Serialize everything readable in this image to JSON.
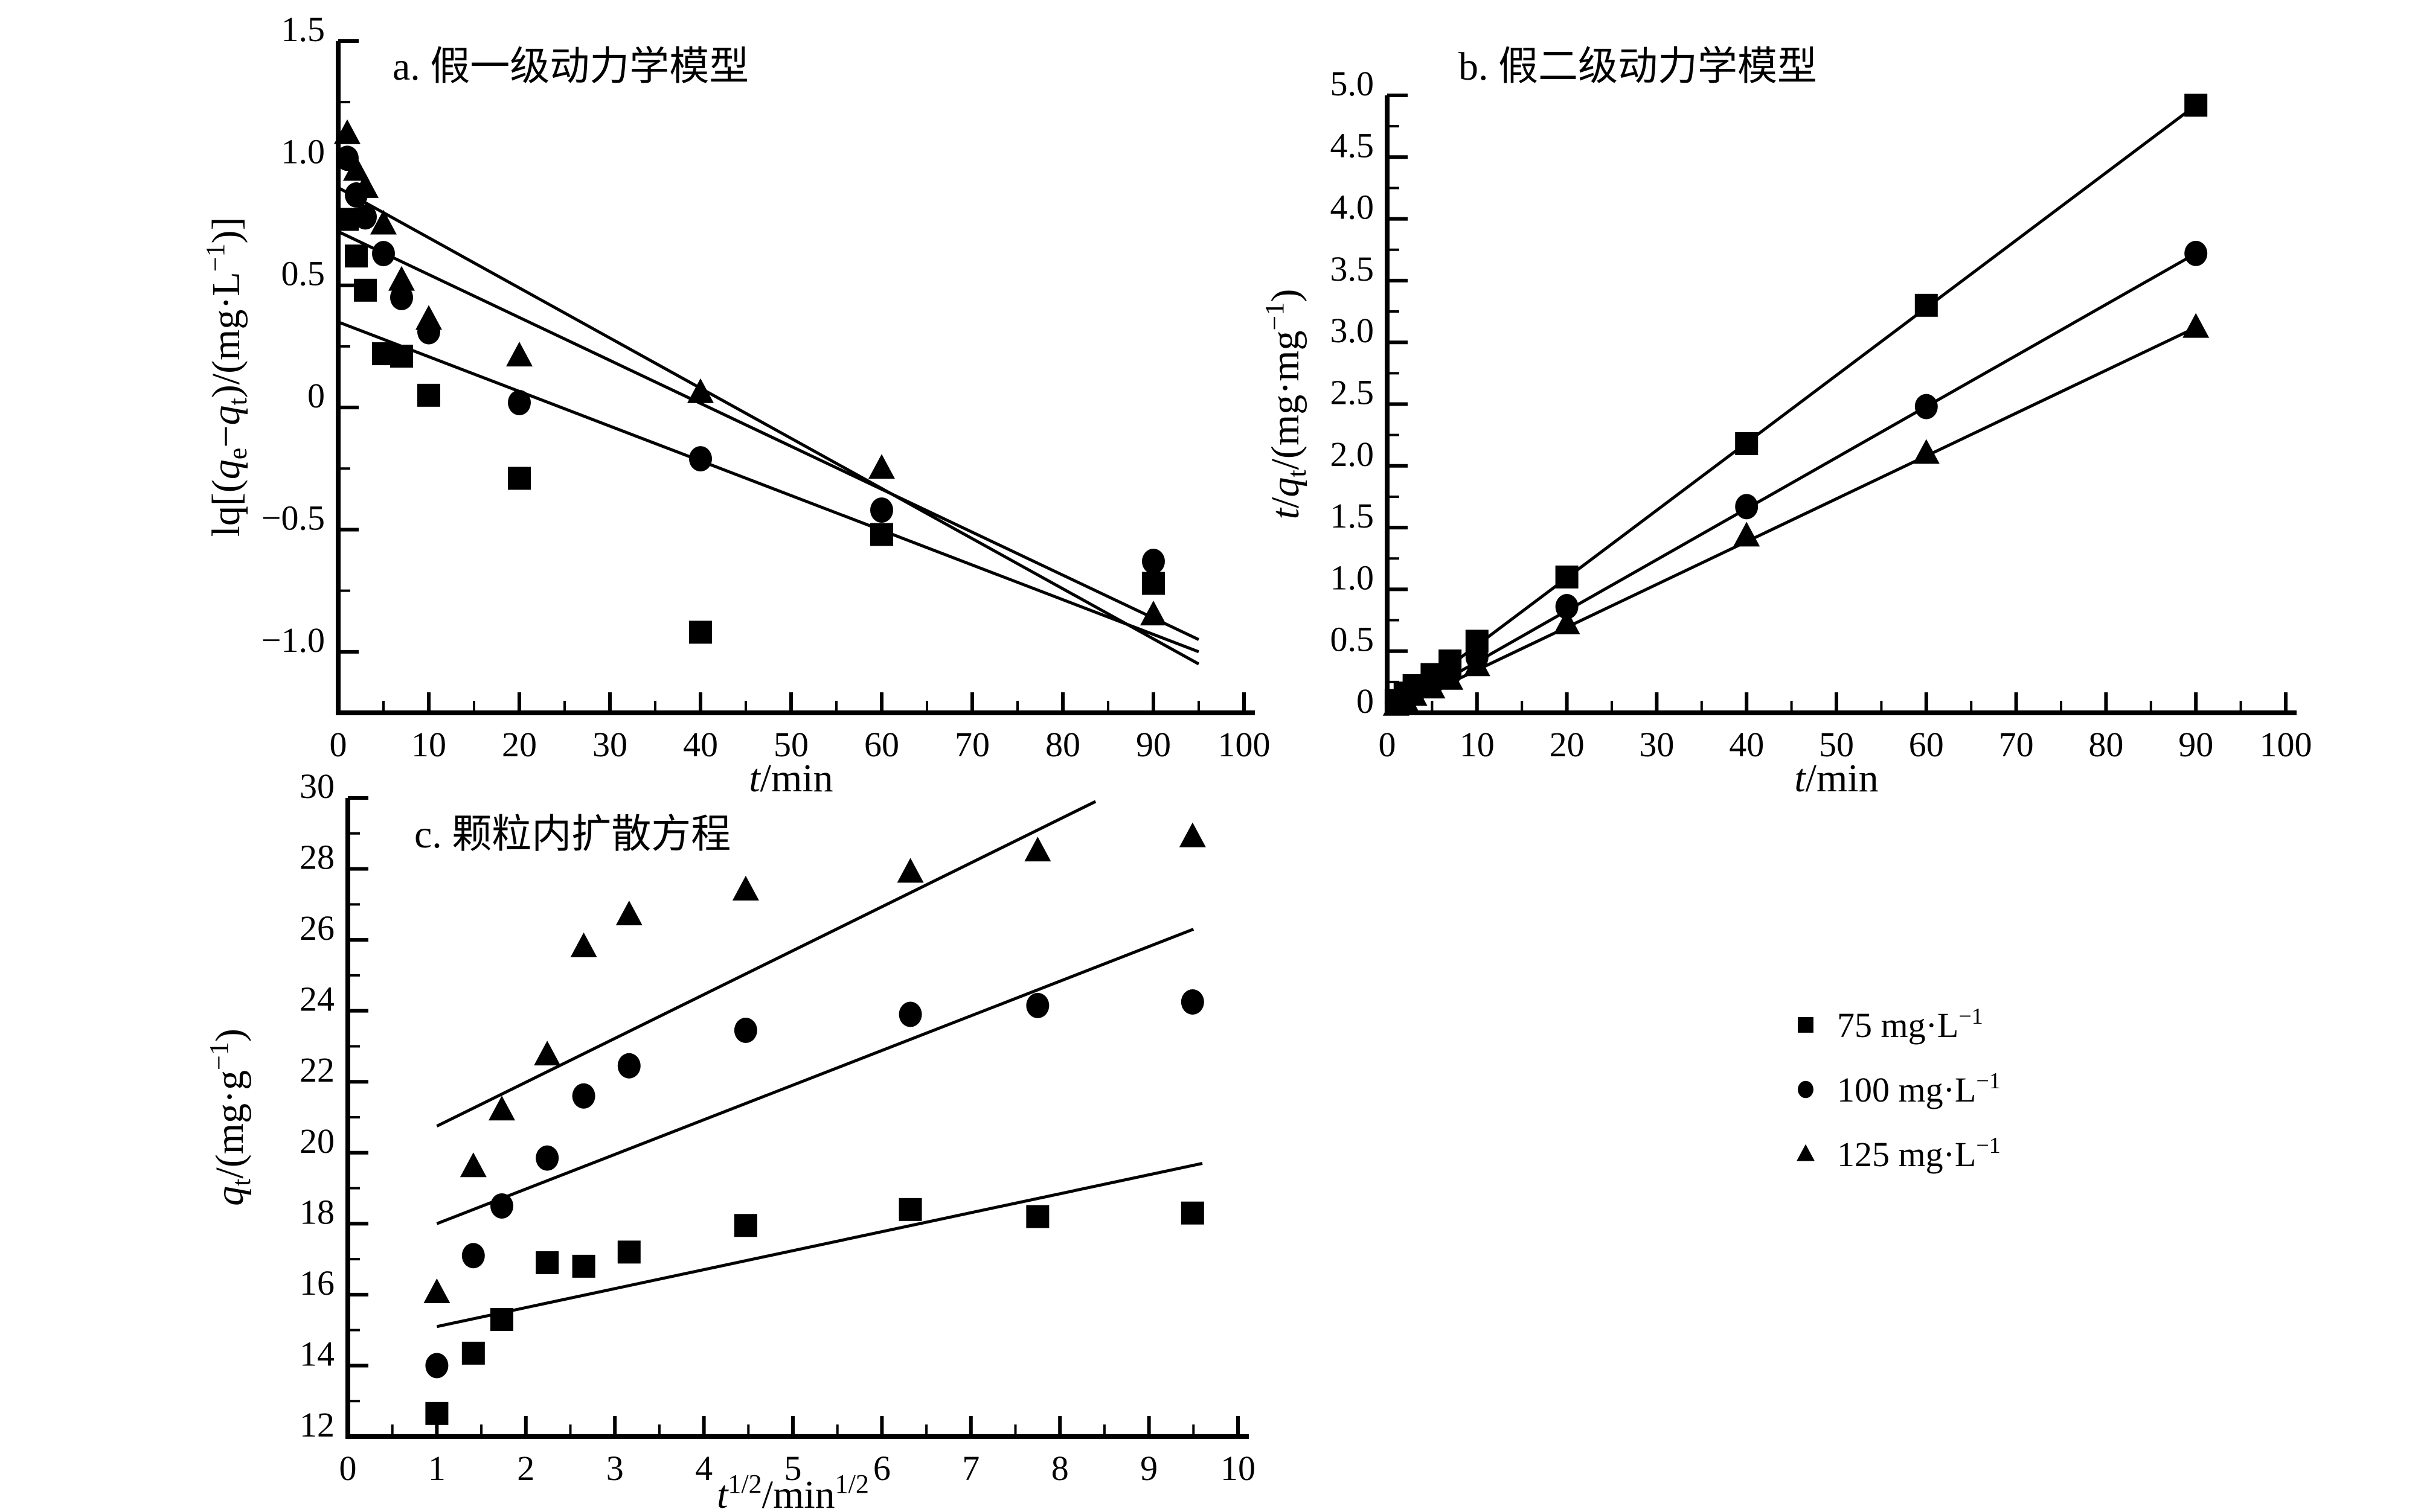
{
  "figure": {
    "background": "#ffffff",
    "ink": "#000000",
    "description": "Adsorption kinetics model fits at three initial concentrations"
  },
  "legend": {
    "items": [
      {
        "marker": "square",
        "label": "75 mg·L^{−1}"
      },
      {
        "marker": "circle",
        "label": "100 mg·L^{−1}"
      },
      {
        "marker": "triangle",
        "label": "125 mg·L^{−1}"
      }
    ]
  },
  "chart_data": [
    {
      "id": "a",
      "type": "scatter",
      "title": "a. 假一级动力学模型",
      "xlabel": "*{t}/min",
      "ylabel": "lq[(*{q}_{e}−*{q}_{t})/(mg·L^{−1})]",
      "xlim": [
        0,
        100
      ],
      "ylim": [
        -1.25,
        1.5
      ],
      "x_minor_step": 5,
      "y_minor_step": 0.25,
      "xticks": [
        [
          0,
          "0"
        ],
        [
          10,
          "10"
        ],
        [
          20,
          "20"
        ],
        [
          30,
          "30"
        ],
        [
          40,
          "40"
        ],
        [
          50,
          "50"
        ],
        [
          60,
          "60"
        ],
        [
          70,
          "70"
        ],
        [
          80,
          "80"
        ],
        [
          90,
          "90"
        ],
        [
          100,
          "100"
        ]
      ],
      "yticks": [
        [
          -1.0,
          "−1.0"
        ],
        [
          -0.5,
          "−0.5"
        ],
        [
          0,
          "0"
        ],
        [
          0.5,
          "0.5"
        ],
        [
          1.0,
          "1.0"
        ],
        [
          1.5,
          "1.5"
        ]
      ],
      "series": [
        {
          "name": "75 mg·L^{−1}",
          "marker": "square",
          "x": [
            1,
            2,
            3,
            5,
            7,
            10,
            20,
            40,
            60,
            90
          ],
          "y": [
            0.77,
            0.62,
            0.48,
            0.22,
            0.21,
            0.05,
            -0.29,
            -0.92,
            -0.52,
            -0.72
          ]
        },
        {
          "name": "100 mg·L^{−1}",
          "marker": "circle",
          "x": [
            1,
            2,
            3,
            5,
            7,
            10,
            20,
            40,
            60,
            90
          ],
          "y": [
            1.02,
            0.87,
            0.78,
            0.63,
            0.45,
            0.31,
            0.02,
            -0.21,
            -0.42,
            -0.63
          ]
        },
        {
          "name": "125 mg·L^{−1}",
          "marker": "triangle",
          "x": [
            1,
            2,
            3,
            5,
            7,
            10,
            20,
            40,
            60,
            90
          ],
          "y": [
            1.12,
            0.97,
            0.9,
            0.75,
            0.52,
            0.36,
            0.21,
            0.06,
            -0.25,
            -0.85
          ]
        }
      ],
      "fit_lines": [
        {
          "series": "75 mg·L^{−1}",
          "points": [
            [
              0,
              0.35
            ],
            [
              95,
              -1.0
            ]
          ]
        },
        {
          "series": "100 mg·L^{−1}",
          "points": [
            [
              0,
              0.72
            ],
            [
              95,
              -0.95
            ]
          ]
        },
        {
          "series": "125 mg·L^{−1}",
          "points": [
            [
              0,
              0.9
            ],
            [
              95,
              -1.05
            ]
          ]
        }
      ]
    },
    {
      "id": "b",
      "type": "scatter",
      "title": "b. 假二级动力学模型",
      "xlabel": "*{t}/min",
      "ylabel": "*{t}/*{q}_{t}/(mg·mg^{−1})",
      "xlim": [
        0,
        100
      ],
      "ylim": [
        0,
        5.0
      ],
      "x_minor_step": 5,
      "y_minor_step": 0.25,
      "xticks": [
        [
          0,
          "0"
        ],
        [
          10,
          "10"
        ],
        [
          20,
          "20"
        ],
        [
          30,
          "30"
        ],
        [
          40,
          "40"
        ],
        [
          50,
          "50"
        ],
        [
          60,
          "60"
        ],
        [
          70,
          "70"
        ],
        [
          80,
          "80"
        ],
        [
          90,
          "90"
        ],
        [
          100,
          "100"
        ]
      ],
      "yticks": [
        [
          0,
          "0"
        ],
        [
          0.5,
          "0.5"
        ],
        [
          1.0,
          "1.0"
        ],
        [
          1.5,
          "1.5"
        ],
        [
          2.0,
          "2.0"
        ],
        [
          2.5,
          "2.5"
        ],
        [
          3.0,
          "3.0"
        ],
        [
          3.5,
          "3.5"
        ],
        [
          4.0,
          "4.0"
        ],
        [
          4.5,
          "4.5"
        ],
        [
          5.0,
          "5.0"
        ]
      ],
      "series": [
        {
          "name": "75 mg·L^{−1}",
          "marker": "square",
          "x": [
            1,
            2,
            3,
            5,
            7,
            10,
            20,
            40,
            60,
            90
          ],
          "y": [
            0.1,
            0.16,
            0.22,
            0.31,
            0.42,
            0.58,
            1.1,
            2.18,
            3.3,
            4.92
          ]
        },
        {
          "name": "100 mg·L^{−1}",
          "marker": "circle",
          "x": [
            1,
            2,
            3,
            5,
            7,
            10,
            20,
            40,
            60,
            90
          ],
          "y": [
            0.08,
            0.13,
            0.17,
            0.24,
            0.32,
            0.45,
            0.86,
            1.67,
            2.48,
            3.72
          ]
        },
        {
          "name": "125 mg·L^{−1}",
          "marker": "triangle",
          "x": [
            1,
            2,
            3,
            5,
            7,
            10,
            20,
            40,
            60,
            90
          ],
          "y": [
            0.06,
            0.1,
            0.14,
            0.2,
            0.27,
            0.38,
            0.72,
            1.43,
            2.1,
            3.12
          ]
        }
      ],
      "fit_lines": [
        {
          "series": "75 mg·L^{−1}",
          "points": [
            [
              0,
              0
            ],
            [
              90,
              4.92
            ]
          ]
        },
        {
          "series": "100 mg·L^{−1}",
          "points": [
            [
              0,
              0
            ],
            [
              90,
              3.72
            ]
          ]
        },
        {
          "series": "125 mg·L^{−1}",
          "points": [
            [
              0,
              0
            ],
            [
              90,
              3.12
            ]
          ]
        }
      ]
    },
    {
      "id": "c",
      "type": "scatter",
      "title": "c. 颗粒内扩散方程",
      "xlabel": "*{t}^{1/2}/min^{1/2}",
      "ylabel": "*{q}_{t}/(mg·g^{−1})",
      "xlim": [
        0,
        10
      ],
      "ylim": [
        12,
        30
      ],
      "x_minor_step": 0.5,
      "y_minor_step": 1,
      "xticks": [
        [
          0,
          "0"
        ],
        [
          1,
          "1"
        ],
        [
          2,
          "2"
        ],
        [
          3,
          "3"
        ],
        [
          4,
          "4"
        ],
        [
          5,
          "5"
        ],
        [
          6,
          "6"
        ],
        [
          7,
          "7"
        ],
        [
          8,
          "8"
        ],
        [
          9,
          "9"
        ],
        [
          10,
          "10"
        ]
      ],
      "yticks": [
        [
          12,
          "12"
        ],
        [
          14,
          "14"
        ],
        [
          16,
          "16"
        ],
        [
          18,
          "18"
        ],
        [
          20,
          "20"
        ],
        [
          22,
          "22"
        ],
        [
          24,
          "24"
        ],
        [
          26,
          "26"
        ],
        [
          28,
          "28"
        ],
        [
          30,
          "30"
        ]
      ],
      "series": [
        {
          "name": "75 mg·L^{−1}",
          "marker": "square",
          "x": [
            1,
            1.41,
            1.73,
            2.24,
            2.65,
            3.16,
            4.47,
            6.32,
            7.75,
            9.49
          ],
          "y": [
            12.65,
            14.35,
            15.3,
            16.9,
            16.8,
            17.2,
            17.95,
            18.4,
            18.2,
            18.3
          ]
        },
        {
          "name": "100 mg·L^{−1}",
          "marker": "circle",
          "x": [
            1,
            1.41,
            1.73,
            2.24,
            2.65,
            3.16,
            4.47,
            6.32,
            7.75,
            9.49
          ],
          "y": [
            14.0,
            17.1,
            18.5,
            19.85,
            21.6,
            22.45,
            23.45,
            23.9,
            24.15,
            24.25
          ]
        },
        {
          "name": "125 mg·L^{−1}",
          "marker": "triangle",
          "x": [
            1,
            1.41,
            1.73,
            2.24,
            2.65,
            3.16,
            4.47,
            6.32,
            7.75,
            9.49
          ],
          "y": [
            16.05,
            19.6,
            21.2,
            22.75,
            25.8,
            26.7,
            27.4,
            27.9,
            28.5,
            28.9
          ]
        }
      ],
      "fit_lines": [
        {
          "series": "75 mg·L^{−1}",
          "points": [
            [
              1,
              15.1
            ],
            [
              9.6,
              19.7
            ]
          ]
        },
        {
          "series": "100 mg·L^{−1}",
          "points": [
            [
              1,
              18.0
            ],
            [
              9.5,
              26.3
            ]
          ]
        },
        {
          "series": "125 mg·L^{−1}",
          "points": [
            [
              1,
              20.75
            ],
            [
              8.4,
              29.9
            ]
          ]
        }
      ]
    }
  ]
}
